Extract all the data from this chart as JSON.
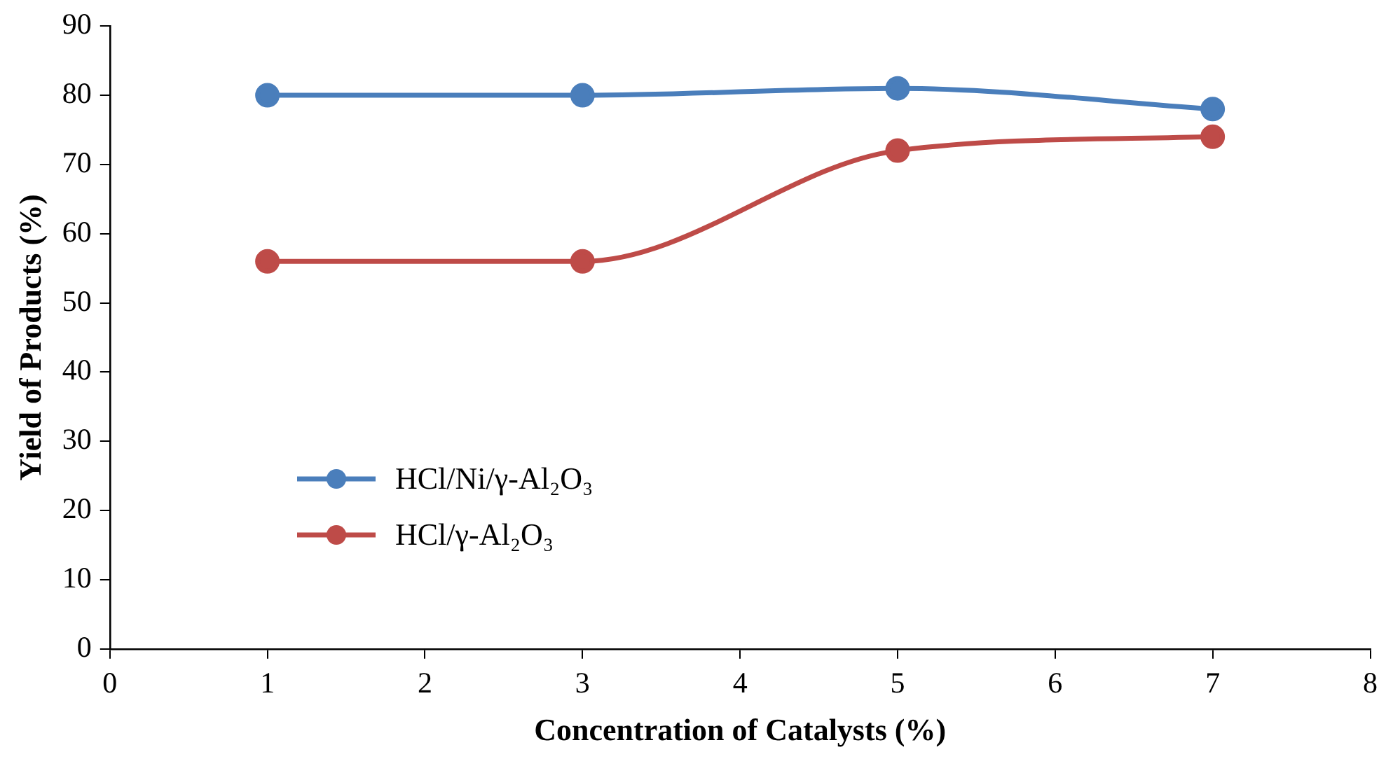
{
  "chart_data": {
    "type": "line",
    "xlabel": "Concentration of Catalysts (%)",
    "ylabel": "Yield of Products (%)",
    "x": [
      1,
      3,
      5,
      7
    ],
    "series": [
      {
        "name": "HCl/Ni/γ-Al₂O₃",
        "color": "#4a7ebb",
        "values": [
          80,
          80,
          81,
          78
        ]
      },
      {
        "name": "HCl/γ-Al₂O₃",
        "color": "#be4b48",
        "values": [
          56,
          56,
          72,
          74
        ]
      }
    ],
    "xlim": [
      0,
      8
    ],
    "xticks": [
      0,
      1,
      2,
      3,
      4,
      5,
      6,
      7,
      8
    ],
    "ylim": [
      0,
      90
    ],
    "yticks": [
      0,
      10,
      20,
      30,
      40,
      50,
      60,
      70,
      80,
      90
    ],
    "grid": false,
    "legend": "left",
    "marker": "circle",
    "line_style": "solid"
  }
}
